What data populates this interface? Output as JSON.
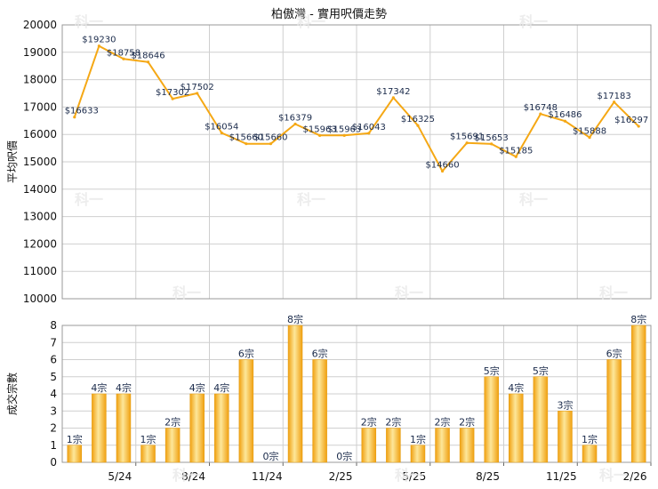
{
  "title": "柏傲灣 - 實用呎價走勢",
  "watermark": "科一",
  "colors": {
    "line": "#f5a815",
    "bar_light": "#fde79a",
    "bar_dark": "#f0a010",
    "grid": "#cfcfcf",
    "label": "#1a2a4a"
  },
  "chart_data": [
    {
      "type": "line",
      "ylabel": "平均呎價",
      "ylim": [
        10000,
        20000
      ],
      "yticks": [
        "20000",
        "19000",
        "18000",
        "17000",
        "16000",
        "15000",
        "14000",
        "13000",
        "12000",
        "11000",
        "10000"
      ],
      "values": [
        16633,
        19230,
        18758,
        18646,
        17302,
        17502,
        16054,
        15660,
        15660,
        16379,
        15963,
        15963,
        16043,
        17342,
        16325,
        14660,
        15691,
        15653,
        15185,
        16748,
        16486,
        15888,
        17183,
        16297
      ],
      "labels": [
        "$16633",
        "$19230",
        "$18758",
        "$18646",
        "$17302",
        "$17502",
        "$16054",
        "$15660",
        "$15660",
        "$16379",
        "$15963",
        "$15963",
        "$16043",
        "$17342",
        "$16325",
        "$14660",
        "$15691",
        "$15653",
        "$15185",
        "$16748",
        "$16486",
        "$15888",
        "$17183",
        "$16297"
      ]
    },
    {
      "type": "bar",
      "ylabel": "成交宗數",
      "ylim": [
        0,
        8
      ],
      "yticks": [
        "8",
        "7",
        "6",
        "5",
        "4",
        "3",
        "2",
        "1",
        "0"
      ],
      "values": [
        1,
        4,
        4,
        1,
        2,
        4,
        4,
        6,
        0,
        8,
        6,
        0,
        2,
        2,
        1,
        2,
        2,
        5,
        4,
        5,
        3,
        1,
        6,
        8
      ],
      "labels": [
        "1宗",
        "4宗",
        "4宗",
        "1宗",
        "2宗",
        "4宗",
        "4宗",
        "6宗",
        "0宗",
        "8宗",
        "6宗",
        "0宗",
        "2宗",
        "2宗",
        "1宗",
        "2宗",
        "2宗",
        "5宗",
        "4宗",
        "5宗",
        "3宗",
        "1宗",
        "6宗",
        "8宗"
      ],
      "xticks": [
        {
          "label": "5/24",
          "index": 2
        },
        {
          "label": "8/24",
          "index": 5
        },
        {
          "label": "11/24",
          "index": 8
        },
        {
          "label": "2/25",
          "index": 11
        },
        {
          "label": "5/25",
          "index": 14
        },
        {
          "label": "8/25",
          "index": 17
        },
        {
          "label": "11/25",
          "index": 20
        },
        {
          "label": "2/26",
          "index": 23
        }
      ]
    }
  ]
}
